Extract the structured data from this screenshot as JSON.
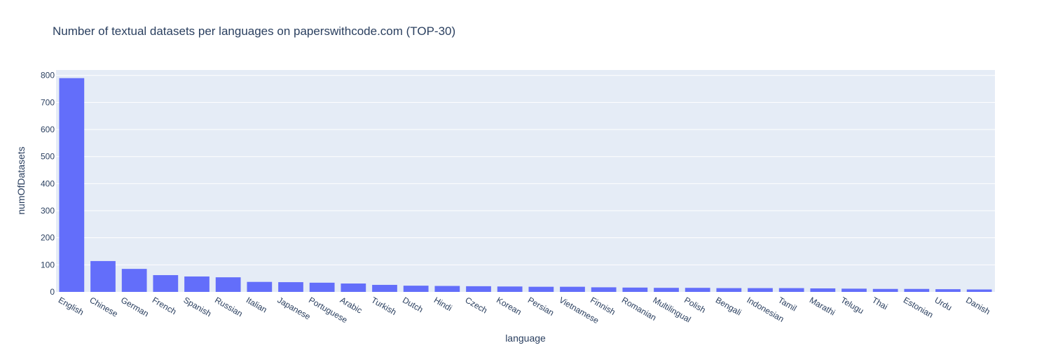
{
  "chart_data": {
    "type": "bar",
    "title": "Number of textual datasets per languages on paperswithcode.com (TOP-30)",
    "xlabel": "language",
    "ylabel": "numOfDatasets",
    "ylim": [
      0,
      820
    ],
    "yticks": [
      0,
      100,
      200,
      300,
      400,
      500,
      600,
      700,
      800
    ],
    "grid": true,
    "colors": {
      "bar": "#636efa",
      "plot_bg": "#e5ecf6",
      "text": "#2a3f5f"
    },
    "categories": [
      "English",
      "Chinese",
      "German",
      "French",
      "Spanish",
      "Russian",
      "Italian",
      "Japanese",
      "Portuguese",
      "Arabic",
      "Turkish",
      "Dutch",
      "Hindi",
      "Czech",
      "Korean",
      "Persian",
      "Vietnamese",
      "Finnish",
      "Romanian",
      "Multilingual",
      "Polish",
      "Bengali",
      "Indonesian",
      "Tamil",
      "Marathi",
      "Telugu",
      "Thai",
      "Estonian",
      "Urdu",
      "Danish"
    ],
    "values": [
      790,
      114,
      85,
      62,
      57,
      54,
      37,
      36,
      34,
      31,
      26,
      23,
      22,
      21,
      20,
      19,
      19,
      17,
      16,
      15,
      15,
      14,
      14,
      14,
      13,
      12,
      11,
      11,
      10,
      9
    ]
  }
}
